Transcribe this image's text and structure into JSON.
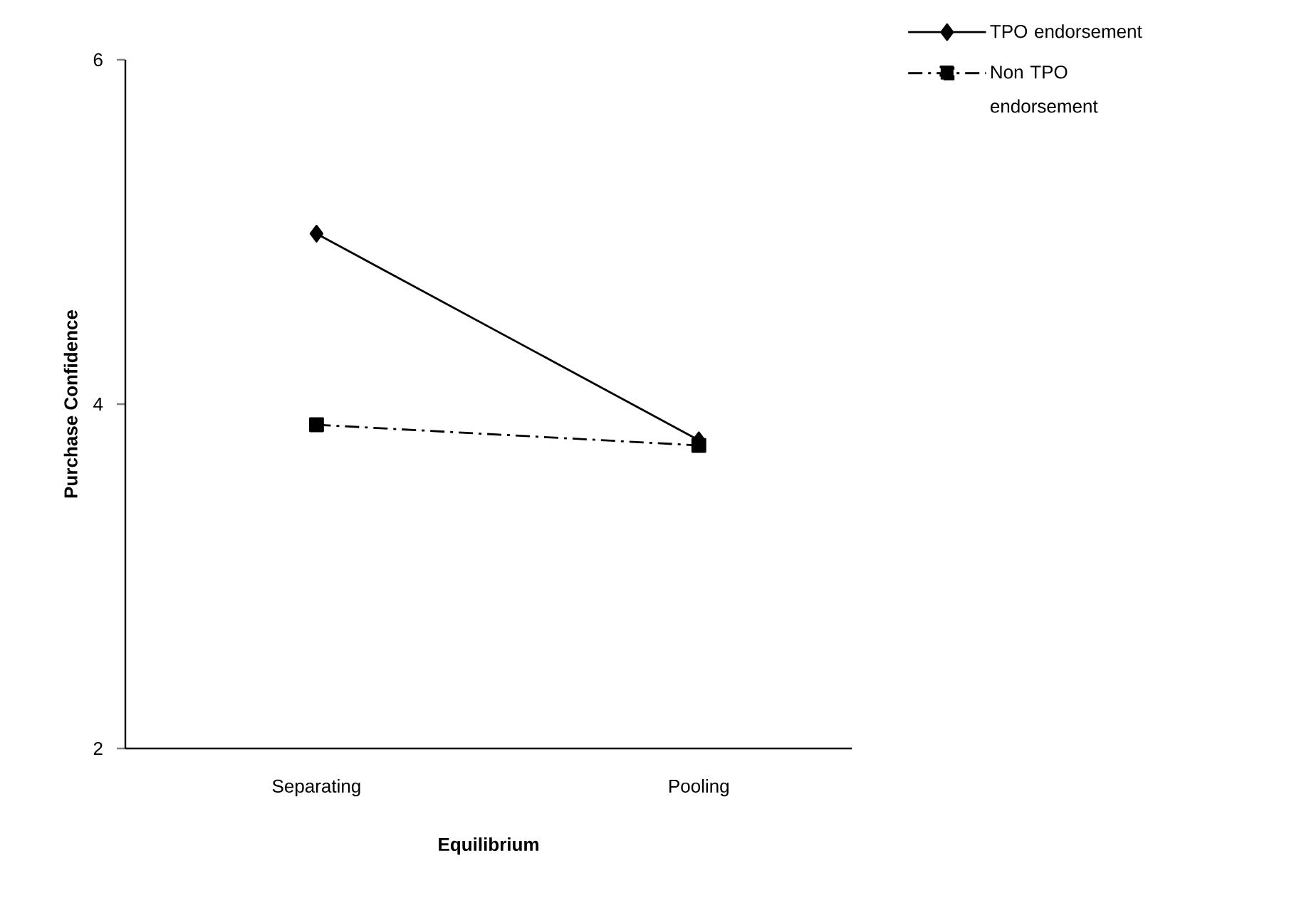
{
  "chart_data": {
    "type": "line",
    "xlabel": "Equilibrium",
    "ylabel": "Purchase Confidence",
    "categories": [
      "Separating",
      "Pooling"
    ],
    "series": [
      {
        "name": "TPO endorsement",
        "color": "#000000",
        "values": [
          4.99,
          3.79
        ],
        "marker": "diamond",
        "line_style": "solid"
      },
      {
        "name": "Non TPO endorsement",
        "color": "#000000",
        "values": [
          3.88,
          3.76
        ],
        "marker": "square",
        "line_style": "dashdotted"
      }
    ],
    "ylim": [
      2,
      6
    ],
    "yticks": [
      2,
      4,
      6
    ],
    "grid": false,
    "legend": "top right"
  }
}
